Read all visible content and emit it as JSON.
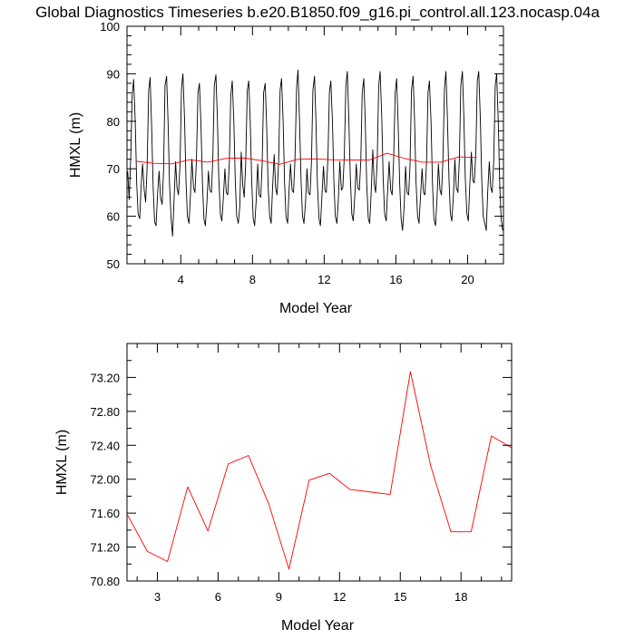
{
  "chart_data": [
    {
      "type": "line",
      "title": "Global Diagnostics Timeseries b.e20.B1850.f09_g16.pi_control.all.123.nocasp.04a",
      "xlabel": "Model Year",
      "ylabel": "HMXL (m)",
      "xlim": [
        1.0,
        22.0
      ],
      "ylim": [
        50,
        100
      ],
      "xticks": [
        4,
        8,
        12,
        16,
        20
      ],
      "yticks": [
        50,
        60,
        70,
        80,
        90,
        100
      ],
      "series": [
        {
          "color": "#000000",
          "style": "monthly",
          "x": [
            1.04,
            1.12,
            1.21,
            1.29,
            1.37,
            1.46,
            1.54,
            1.62,
            1.71,
            1.79,
            1.87,
            1.96,
            2.04,
            2.12,
            2.21,
            2.29,
            2.37,
            2.46,
            2.54,
            2.62,
            2.71,
            2.79,
            2.87,
            2.96,
            3.04,
            3.12,
            3.21,
            3.29,
            3.37,
            3.46,
            3.54,
            3.62,
            3.71,
            3.79,
            3.87,
            3.96,
            4.04,
            4.12,
            4.21,
            4.29,
            4.37,
            4.46,
            4.54,
            4.62,
            4.71,
            4.79,
            4.87,
            4.96,
            5.04,
            5.12,
            5.21,
            5.29,
            5.37,
            5.46,
            5.54,
            5.62,
            5.71,
            5.79,
            5.87,
            5.96,
            6.04,
            6.12,
            6.21,
            6.29,
            6.37,
            6.46,
            6.54,
            6.62,
            6.71,
            6.79,
            6.87,
            6.96,
            7.04,
            7.12,
            7.21,
            7.29,
            7.37,
            7.46,
            7.54,
            7.62,
            7.71,
            7.79,
            7.87,
            7.96,
            8.04,
            8.12,
            8.21,
            8.29,
            8.37,
            8.46,
            8.54,
            8.62,
            8.71,
            8.79,
            8.87,
            8.96,
            9.04,
            9.12,
            9.21,
            9.29,
            9.37,
            9.46,
            9.54,
            9.62,
            9.71,
            9.79,
            9.87,
            9.96,
            10.04,
            10.12,
            10.21,
            10.29,
            10.37,
            10.46,
            10.54,
            10.62,
            10.71,
            10.79,
            10.87,
            10.96,
            11.04,
            11.12,
            11.21,
            11.29,
            11.37,
            11.46,
            11.54,
            11.62,
            11.71,
            11.79,
            11.87,
            11.96,
            12.04,
            12.12,
            12.21,
            12.29,
            12.37,
            12.46,
            12.54,
            12.62,
            12.71,
            12.79,
            12.87,
            12.96,
            13.04,
            13.12,
            13.21,
            13.29,
            13.37,
            13.46,
            13.54,
            13.62,
            13.71,
            13.79,
            13.87,
            13.96,
            14.04,
            14.12,
            14.21,
            14.29,
            14.37,
            14.46,
            14.54,
            14.62,
            14.71,
            14.79,
            14.87,
            14.96,
            15.04,
            15.12,
            15.21,
            15.29,
            15.37,
            15.46,
            15.54,
            15.62,
            15.71,
            15.79,
            15.87,
            15.96,
            16.04,
            16.12,
            16.21,
            16.29,
            16.37,
            16.46,
            16.54,
            16.62,
            16.71,
            16.79,
            16.87,
            16.96,
            17.04,
            17.12,
            17.21,
            17.29,
            17.37,
            17.46,
            17.54,
            17.62,
            17.71,
            17.79,
            17.87,
            17.96,
            18.04,
            18.12,
            18.21,
            18.29,
            18.37,
            18.46,
            18.54,
            18.62,
            18.71,
            18.79,
            18.87,
            18.96,
            19.04,
            19.12,
            19.21,
            19.29,
            19.37,
            19.46,
            19.54,
            19.62,
            19.71,
            19.79,
            19.87,
            19.96,
            20.04,
            20.12,
            20.21,
            20.29,
            20.37,
            20.46,
            20.54,
            20.62,
            20.71,
            20.79,
            20.87,
            20.96,
            21.04,
            21.12,
            21.21,
            21.29,
            21.37,
            21.46,
            21.54,
            21.62,
            21.71,
            21.79,
            21.87,
            21.96
          ],
          "y": [
            69.5,
            63.5,
            72.5,
            85.5,
            88.8,
            80.0,
            67.0,
            60.5,
            59.5,
            66.5,
            71.0,
            65.5,
            63.0,
            70.0,
            86.5,
            89.2,
            79.5,
            66.0,
            58.8,
            58.0,
            65.0,
            69.5,
            64.0,
            62.5,
            69.5,
            87.5,
            89.5,
            80.0,
            67.0,
            59.5,
            55.8,
            63.0,
            71.5,
            66.0,
            64.5,
            71.0,
            87.0,
            90.0,
            80.5,
            67.5,
            60.0,
            58.5,
            64.5,
            72.0,
            66.0,
            65.0,
            71.5,
            86.0,
            88.0,
            80.0,
            67.0,
            59.5,
            58.0,
            63.0,
            69.5,
            65.5,
            65.0,
            72.5,
            87.5,
            89.8,
            81.0,
            68.0,
            60.5,
            59.0,
            63.5,
            70.0,
            65.0,
            64.5,
            71.5,
            85.5,
            88.5,
            80.0,
            67.5,
            60.0,
            58.5,
            62.0,
            73.5,
            66.5,
            64.0,
            71.0,
            86.5,
            88.5,
            80.5,
            67.0,
            59.5,
            58.0,
            63.5,
            71.0,
            64.5,
            64.0,
            71.0,
            86.0,
            88.0,
            79.0,
            66.5,
            60.0,
            58.5,
            66.0,
            73.0,
            66.0,
            64.5,
            71.5,
            86.5,
            89.0,
            80.0,
            67.0,
            60.0,
            58.5,
            65.5,
            71.0,
            65.5,
            65.0,
            72.0,
            87.0,
            90.8,
            80.5,
            67.5,
            60.0,
            58.5,
            63.0,
            70.0,
            65.0,
            64.5,
            71.5,
            86.5,
            89.5,
            80.0,
            67.0,
            59.5,
            58.0,
            64.0,
            70.5,
            65.5,
            65.0,
            72.5,
            86.0,
            88.5,
            80.0,
            67.5,
            60.0,
            58.5,
            63.5,
            71.5,
            65.5,
            66.0,
            72.5,
            87.5,
            90.5,
            81.0,
            68.0,
            60.5,
            59.0,
            64.5,
            71.0,
            66.0,
            65.5,
            71.5,
            86.0,
            89.0,
            80.0,
            67.0,
            59.5,
            58.5,
            65.0,
            74.0,
            67.0,
            65.0,
            72.0,
            87.5,
            90.5,
            81.0,
            68.0,
            60.5,
            59.0,
            65.5,
            71.5,
            65.5,
            64.5,
            71.5,
            86.0,
            89.0,
            80.0,
            67.0,
            59.5,
            57.0,
            62.0,
            70.5,
            65.0,
            64.5,
            71.0,
            86.5,
            89.5,
            80.5,
            67.5,
            60.0,
            58.5,
            64.0,
            70.0,
            65.0,
            64.5,
            71.5,
            86.0,
            88.5,
            80.0,
            67.0,
            59.5,
            58.0,
            63.5,
            71.0,
            65.5,
            64.5,
            71.5,
            87.0,
            90.5,
            81.0,
            68.0,
            60.5,
            59.0,
            64.5,
            72.0,
            66.0,
            65.0,
            72.0,
            87.5,
            90.5,
            81.0,
            68.0,
            60.5,
            59.0,
            66.5,
            73.5,
            67.5,
            67.0,
            73.5,
            88.5,
            90.5,
            80.5,
            67.5,
            60.0,
            58.5,
            57.0,
            65.0,
            71.5,
            66.0,
            65.0,
            72.0,
            87.5,
            90.0,
            80.0,
            67.0,
            59.5,
            57.0
          ]
        },
        {
          "color": "#ff0000",
          "style": "annual",
          "x": [
            1.5,
            2.5,
            3.5,
            4.5,
            5.5,
            6.5,
            7.5,
            8.5,
            9.5,
            10.5,
            11.5,
            12.5,
            13.5,
            14.5,
            15.5,
            16.5,
            17.5,
            18.5,
            19.5,
            20.5
          ],
          "y": [
            71.59,
            71.15,
            71.03,
            71.91,
            71.39,
            72.18,
            72.28,
            71.71,
            70.94,
            71.99,
            72.07,
            71.88,
            71.85,
            71.82,
            73.27,
            72.16,
            71.38,
            71.38,
            72.51,
            72.37
          ]
        }
      ]
    },
    {
      "type": "line",
      "xlabel": "Model Year",
      "ylabel": "HMXL (m)",
      "xlim": [
        1.5,
        20.5
      ],
      "ylim": [
        70.8,
        73.6
      ],
      "xticks": [
        3,
        6,
        9,
        12,
        15,
        18
      ],
      "yticks": [
        70.8,
        71.2,
        71.6,
        72.0,
        72.4,
        72.8,
        73.2
      ],
      "ytick_labels": [
        "70.80",
        "71.20",
        "71.60",
        "72.00",
        "72.40",
        "72.80",
        "73.20"
      ],
      "series": [
        {
          "color": "#ff0000",
          "x": [
            1.5,
            2.5,
            3.5,
            4.5,
            5.5,
            6.5,
            7.5,
            8.5,
            9.5,
            10.5,
            11.5,
            12.5,
            13.5,
            14.5,
            15.5,
            16.5,
            17.5,
            18.5,
            19.5,
            20.5
          ],
          "y": [
            71.59,
            71.15,
            71.03,
            71.91,
            71.39,
            72.18,
            72.28,
            71.71,
            70.94,
            71.99,
            72.07,
            71.88,
            71.85,
            71.82,
            73.27,
            72.16,
            71.38,
            71.38,
            72.51,
            72.37
          ]
        }
      ]
    }
  ]
}
